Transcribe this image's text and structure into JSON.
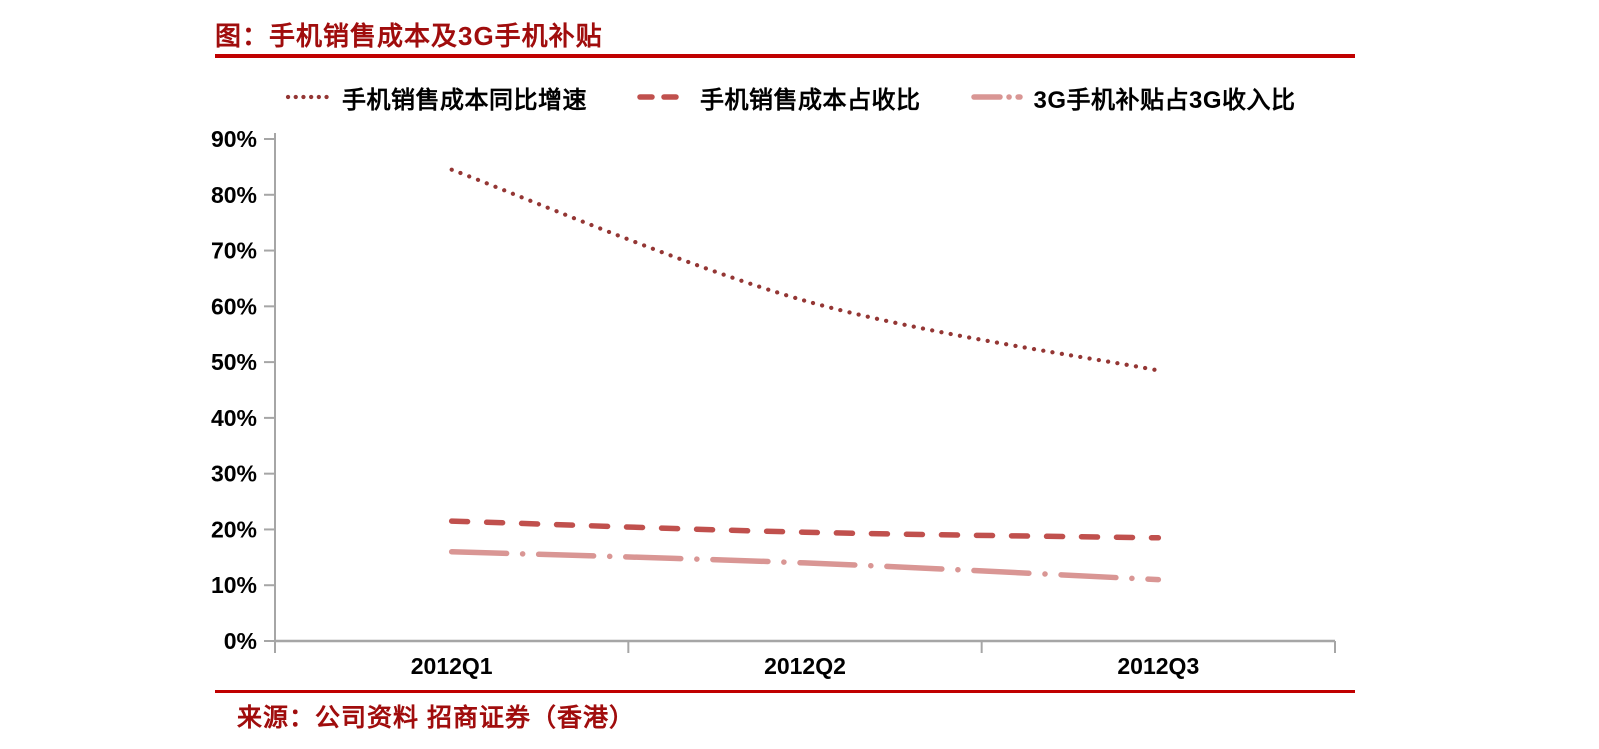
{
  "title": "图：手机销售成本及3G手机补贴",
  "source": "来源：公司资料 招商证券（香港）",
  "colors": {
    "title_red": "#A00D0D",
    "rule_red": "#C00000",
    "axis_grey": "#A6A6A6",
    "label_black": "#000000",
    "series_dark_red": "#943634",
    "series_red": "#C0504D",
    "series_pink": "#D99694"
  },
  "chart_data": {
    "type": "line",
    "categories": [
      "2012Q1",
      "2012Q2",
      "2012Q3"
    ],
    "series": [
      {
        "name": "手机销售成本同比增速",
        "style": "dotted",
        "color": "#943634",
        "values": [
          84.5,
          61.0,
          48.5
        ]
      },
      {
        "name": "手机销售成本占收比",
        "style": "dashed",
        "color": "#C0504D",
        "values": [
          21.5,
          19.5,
          18.5
        ]
      },
      {
        "name": "3G手机补贴占3G收入比",
        "style": "dash-dot",
        "color": "#D99694",
        "values": [
          16.0,
          14.0,
          11.0
        ]
      }
    ],
    "ylim": [
      0,
      90
    ],
    "ytick_step": 10,
    "ytick_labels": [
      "0%",
      "10%",
      "20%",
      "30%",
      "40%",
      "50%",
      "60%",
      "70%",
      "80%",
      "90%"
    ],
    "legend_position": "top",
    "grid": false
  }
}
